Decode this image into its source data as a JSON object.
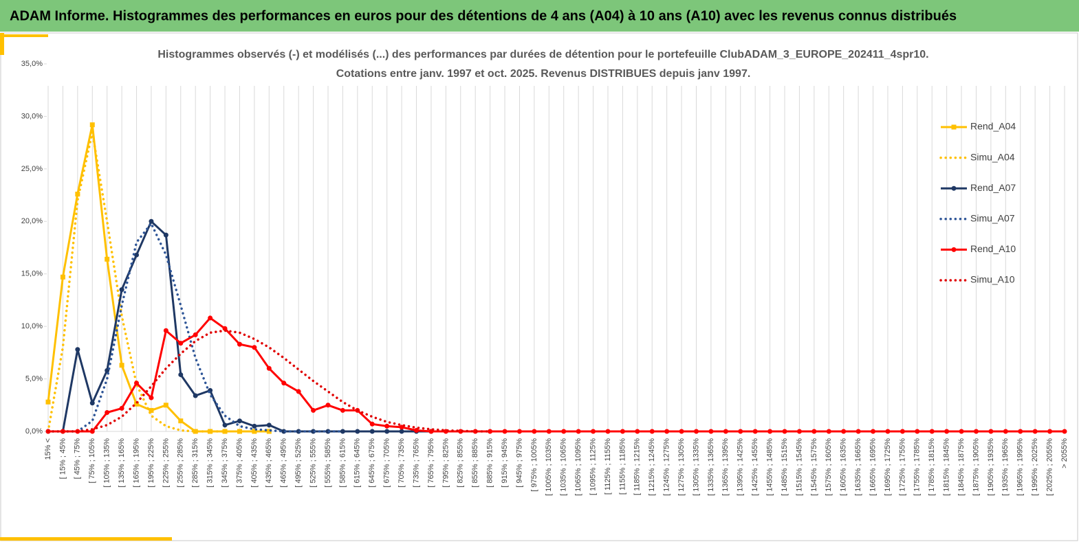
{
  "header": "ADAM Informe. Histogrammes des performances en euros pour des détentions de 4 ans (A04) à 10 ans (A10) avec les revenus connus distribués",
  "chart_data": {
    "type": "line",
    "title": "Histogrammes observés (-) et modélisés (...) des performances par durées de détention pour le portefeuille ClubADAM_3_EUROPE_202411_4spr10.",
    "subtitle": "Cotations entre janv. 1997 et oct. 2025. Revenus DISTRIBUES depuis janv 1997.",
    "categories": [
      "15% <",
      "[ 15% ; 45%",
      "[ 45% ; 75%",
      "[ 75% ; 105%",
      "[ 105% ; 135%",
      "[ 135% ; 165%",
      "[ 165% ; 195%",
      "[ 195% ; 225%",
      "[ 225% ; 255%",
      "[ 255% ; 285%",
      "[ 285% ; 315%",
      "[ 315% ; 345%",
      "[ 345% ; 375%",
      "[ 375% ; 405%",
      "[ 405% ; 435%",
      "[ 435% ; 465%",
      "[ 465% ; 495%",
      "[ 495% ; 525%",
      "[ 525% ; 555%",
      "[ 555% ; 585%",
      "[ 585% ; 615%",
      "[ 615% ; 645%",
      "[ 645% ; 675%",
      "[ 675% ; 705%",
      "[ 705% ; 735%",
      "[ 735% ; 765%",
      "[ 765% ; 795%",
      "[ 795% ; 825%",
      "[ 825% ; 855%",
      "[ 855% ; 885%",
      "[ 885% ; 915%",
      "[ 915% ; 945%",
      "[ 945% ; 975%",
      "[ 975% ; 1005%",
      "[ 1005% ; 1035%",
      "[ 1035% ; 1065%",
      "[ 1065% ; 1095%",
      "[ 1095% ; 1125%",
      "[ 1125% ; 1155%",
      "[ 1155% ; 1185%",
      "[ 1185% ; 1215%",
      "[ 1215% ; 1245%",
      "[ 1245% ; 1275%",
      "[ 1275% ; 1305%",
      "[ 1305% ; 1335%",
      "[ 1335% ; 1365%",
      "[ 1365% ; 1395%",
      "[ 1395% ; 1425%",
      "[ 1425% ; 1455%",
      "[ 1455% ; 1485%",
      "[ 1485% ; 1515%",
      "[ 1515% ; 1545%",
      "[ 1545% ; 1575%",
      "[ 1575% ; 1605%",
      "[ 1605% ; 1635%",
      "[ 1635% ; 1665%",
      "[ 1665% ; 1695%",
      "[ 1695% ; 1725%",
      "[ 1725% ; 1755%",
      "[ 1755% ; 1785%",
      "[ 1785% ; 1815%",
      "[ 1815% ; 1845%",
      "[ 1845% ; 1875%",
      "[ 1875% ; 1905%",
      "[ 1905% ; 1935%",
      "[ 1935% ; 1965%",
      "[ 1965% ; 1995%",
      "[ 1995% ; 2025%",
      "[ 2025% ; 2055%",
      "> 2055%"
    ],
    "ylim": [
      0,
      35
    ],
    "yticks": [
      {
        "value": 0,
        "label": "0,0%"
      },
      {
        "value": 5,
        "label": "5,0%"
      },
      {
        "value": 10,
        "label": "10,0%"
      },
      {
        "value": 15,
        "label": "15,0%"
      },
      {
        "value": 20,
        "label": "20,0%"
      },
      {
        "value": 25,
        "label": "25,0%"
      },
      {
        "value": 30,
        "label": "30,0%"
      },
      {
        "value": 35,
        "label": "35,0%"
      }
    ],
    "legend": "right",
    "series": [
      {
        "name": "Rend_A04",
        "color": "#FFC000",
        "style": "solid",
        "marker": "square",
        "values": [
          2.8,
          14.7,
          22.6,
          29.2,
          16.4,
          6.3,
          2.6,
          2.0,
          2.5,
          1.0,
          0,
          0,
          0,
          0,
          0,
          0,
          null,
          null,
          null,
          null,
          null,
          null,
          null,
          null,
          null,
          null,
          null,
          null,
          null,
          null,
          null,
          null,
          null,
          null,
          null,
          null,
          null,
          null,
          null,
          null,
          null,
          null,
          null,
          null,
          null,
          null,
          null,
          null,
          null,
          null,
          null,
          null,
          null,
          null,
          null,
          null,
          null,
          null,
          null,
          null,
          null,
          null,
          null,
          null,
          null,
          null,
          null,
          null,
          null,
          null
        ]
      },
      {
        "name": "Simu_A04",
        "color": "#FFC000",
        "style": "dotted",
        "values": [
          0,
          8,
          22,
          28.5,
          20,
          11,
          4.5,
          1.5,
          0.5,
          0.1,
          0,
          0,
          0,
          null,
          null,
          null,
          null,
          null,
          null,
          null,
          null,
          null,
          null,
          null,
          null,
          null,
          null,
          null,
          null,
          null,
          null,
          null,
          null,
          null,
          null,
          null,
          null,
          null,
          null,
          null,
          null,
          null,
          null,
          null,
          null,
          null,
          null,
          null,
          null,
          null,
          null,
          null,
          null,
          null,
          null,
          null,
          null,
          null,
          null,
          null,
          null,
          null,
          null,
          null,
          null,
          null,
          null,
          null,
          null,
          null
        ]
      },
      {
        "name": "Rend_A07",
        "color": "#1F3864",
        "style": "solid",
        "marker": "circle",
        "values": [
          0,
          0,
          7.8,
          2.7,
          5.8,
          13.5,
          16.8,
          20.0,
          18.7,
          5.4,
          3.4,
          3.9,
          0.6,
          1.0,
          0.5,
          0.6,
          0,
          0,
          0,
          0,
          0,
          0,
          0,
          0,
          0,
          0,
          0,
          null,
          null,
          null,
          null,
          null,
          null,
          null,
          null,
          null,
          null,
          null,
          null,
          null,
          null,
          null,
          null,
          null,
          null,
          null,
          null,
          null,
          null,
          null,
          null,
          null,
          null,
          null,
          null,
          null,
          null,
          null,
          null,
          null,
          null,
          null,
          null,
          null,
          null,
          null,
          null,
          null,
          null,
          null
        ]
      },
      {
        "name": "Simu_A07",
        "color": "#2E5597",
        "style": "dotted",
        "values": [
          0,
          0,
          0,
          1,
          5,
          12,
          18,
          19.8,
          16.8,
          12,
          7,
          3.5,
          1.5,
          0.5,
          0.2,
          0.1,
          0,
          0,
          0,
          0,
          0,
          null,
          null,
          null,
          null,
          null,
          null,
          null,
          null,
          null,
          null,
          null,
          null,
          null,
          null,
          null,
          null,
          null,
          null,
          null,
          null,
          null,
          null,
          null,
          null,
          null,
          null,
          null,
          null,
          null,
          null,
          null,
          null,
          null,
          null,
          null,
          null,
          null,
          null,
          null,
          null,
          null,
          null,
          null,
          null,
          null,
          null,
          null,
          null,
          null
        ]
      },
      {
        "name": "Rend_A10",
        "color": "#FF0000",
        "style": "solid",
        "marker": "circle",
        "values": [
          0,
          0,
          0,
          0,
          1.8,
          2.2,
          4.6,
          3.2,
          9.6,
          8.4,
          9.2,
          10.8,
          9.8,
          8.3,
          8.0,
          6.0,
          4.6,
          3.8,
          2.0,
          2.5,
          2.0,
          2.0,
          0.7,
          0.5,
          0.4,
          0.1,
          0,
          0,
          0,
          0,
          0,
          0,
          0,
          0,
          0,
          0,
          0,
          0,
          0,
          0,
          0,
          0,
          0,
          0,
          0,
          0,
          0,
          0,
          0,
          0,
          0,
          0,
          0,
          0,
          0,
          0,
          0,
          0,
          0,
          0,
          0,
          0,
          0,
          0,
          0,
          0,
          0,
          0,
          0,
          0
        ]
      },
      {
        "name": "Simu_A10",
        "color": "#E00000",
        "style": "dotted",
        "values": [
          0,
          0,
          0,
          0.2,
          0.6,
          1.4,
          2.7,
          4.3,
          6.0,
          7.4,
          8.6,
          9.4,
          9.6,
          9.4,
          8.8,
          8.0,
          7.0,
          5.9,
          4.8,
          3.8,
          2.8,
          2.0,
          1.4,
          0.9,
          0.6,
          0.35,
          0.2,
          0.1,
          0.05,
          0,
          0,
          null,
          null,
          null,
          null,
          null,
          null,
          null,
          null,
          null,
          null,
          null,
          null,
          null,
          null,
          null,
          null,
          null,
          null,
          null,
          null,
          null,
          null,
          null,
          null,
          null,
          null,
          null,
          null,
          null,
          null,
          null,
          null,
          null,
          null,
          null,
          null,
          null,
          null,
          null
        ]
      }
    ]
  }
}
